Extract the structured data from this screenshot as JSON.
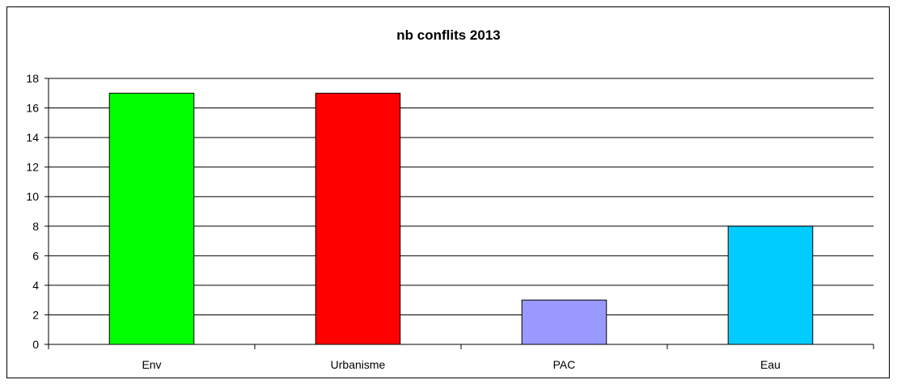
{
  "chart_data": {
    "type": "bar",
    "title": "nb conflits 2013",
    "xlabel": "",
    "ylabel": "",
    "categories": [
      "Env",
      "Urbanisme",
      "PAC",
      "Eau"
    ],
    "values": [
      17,
      17,
      3,
      8
    ],
    "ylim": [
      0,
      18
    ],
    "yticks": [
      "0",
      "2",
      "4",
      "6",
      "8",
      "10",
      "12",
      "14",
      "16",
      "18"
    ],
    "grid": true,
    "legend": "none",
    "colors": [
      "#00ff00",
      "#ff0000",
      "#9999ff",
      "#00ccff"
    ]
  }
}
